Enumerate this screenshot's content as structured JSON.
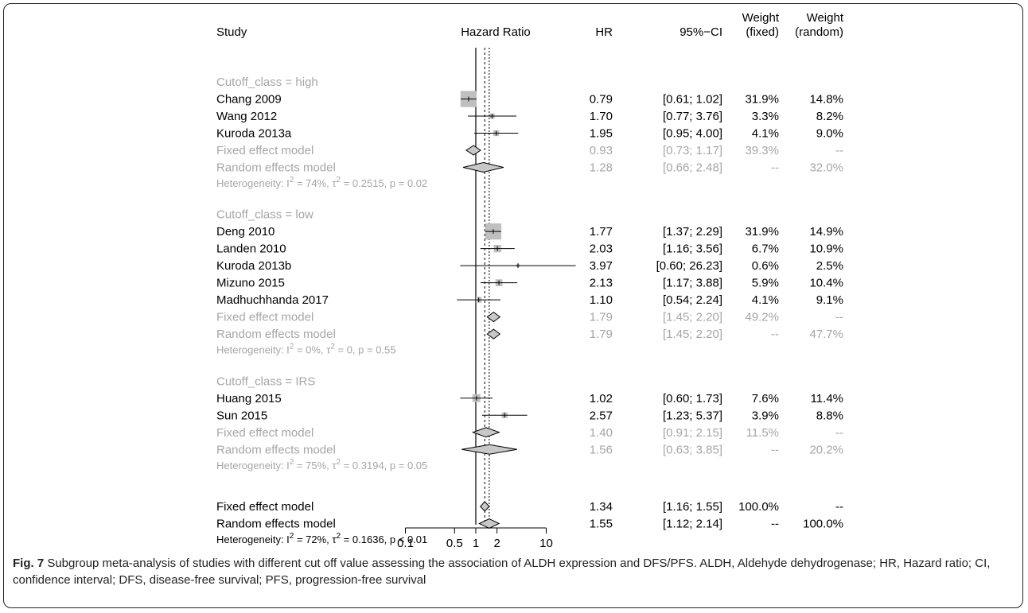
{
  "chart_data": {
    "type": "forest",
    "headers": {
      "study": "Study",
      "plot": "Hazard Ratio",
      "hr": "HR",
      "ci": "95%−CI",
      "weight_fixed_top": "Weight",
      "weight_fixed_bottom": "(fixed)",
      "weight_random_top": "Weight",
      "weight_random_bottom": "(random)"
    },
    "x_scale": "log",
    "x_ticks": [
      0.1,
      0.5,
      1,
      2,
      10
    ],
    "x_tick_labels": [
      "0.1",
      "0.5",
      "1",
      "2",
      "10"
    ],
    "reference_line": 1,
    "fixed_line": 1.34,
    "random_line": 1.55,
    "subgroups": [
      {
        "label": "Cutoff_class = high",
        "studies": [
          {
            "name": "Chang 2009",
            "hr": 0.79,
            "lower": 0.61,
            "upper": 1.02,
            "hr_text": "0.79",
            "ci_text": "[0.61; 1.02]",
            "wf": "31.9%",
            "wr": "14.8%",
            "weight": 31.9
          },
          {
            "name": "Wang 2012",
            "hr": 1.7,
            "lower": 0.77,
            "upper": 3.76,
            "hr_text": "1.70",
            "ci_text": "[0.77; 3.76]",
            "wf": "3.3%",
            "wr": "8.2%",
            "weight": 3.3
          },
          {
            "name": "Kuroda 2013a",
            "hr": 1.95,
            "lower": 0.95,
            "upper": 4.0,
            "hr_text": "1.95",
            "ci_text": "[0.95; 4.00]",
            "wf": "4.1%",
            "wr": "9.0%",
            "weight": 4.1
          }
        ],
        "fixed": {
          "name": "Fixed effect model",
          "hr": 0.93,
          "lower": 0.73,
          "upper": 1.17,
          "hr_text": "0.93",
          "ci_text": "[0.73; 1.17]",
          "wf": "39.3%",
          "wr": "--"
        },
        "random": {
          "name": "Random effects model",
          "hr": 1.28,
          "lower": 0.66,
          "upper": 2.48,
          "hr_text": "1.28",
          "ci_text": "[0.66; 2.48]",
          "wf": "--",
          "wr": "32.0%"
        },
        "heterogeneity": {
          "i2": "74%",
          "tau2": "0.2515",
          "p": "0.02"
        }
      },
      {
        "label": "Cutoff_class = low",
        "studies": [
          {
            "name": "Deng 2010",
            "hr": 1.77,
            "lower": 1.37,
            "upper": 2.29,
            "hr_text": "1.77",
            "ci_text": "[1.37; 2.29]",
            "wf": "31.9%",
            "wr": "14.9%",
            "weight": 31.9
          },
          {
            "name": "Landen 2010",
            "hr": 2.03,
            "lower": 1.16,
            "upper": 3.56,
            "hr_text": "2.03",
            "ci_text": "[1.16; 3.56]",
            "wf": "6.7%",
            "wr": "10.9%",
            "weight": 6.7
          },
          {
            "name": "Kuroda 2013b",
            "hr": 3.97,
            "lower": 0.6,
            "upper": 26.23,
            "hr_text": "3.97",
            "ci_text": "[0.60; 26.23]",
            "wf": "0.6%",
            "wr": "2.5%",
            "weight": 0.6
          },
          {
            "name": "Mizuno 2015",
            "hr": 2.13,
            "lower": 1.17,
            "upper": 3.88,
            "hr_text": "2.13",
            "ci_text": "[1.17; 3.88]",
            "wf": "5.9%",
            "wr": "10.4%",
            "weight": 5.9
          },
          {
            "name": "Madhuchhanda 2017",
            "hr": 1.1,
            "lower": 0.54,
            "upper": 2.24,
            "hr_text": "1.10",
            "ci_text": "[0.54; 2.24]",
            "wf": "4.1%",
            "wr": "9.1%",
            "weight": 4.1
          }
        ],
        "fixed": {
          "name": "Fixed effect model",
          "hr": 1.79,
          "lower": 1.45,
          "upper": 2.2,
          "hr_text": "1.79",
          "ci_text": "[1.45; 2.20]",
          "wf": "49.2%",
          "wr": "--"
        },
        "random": {
          "name": "Random effects model",
          "hr": 1.79,
          "lower": 1.45,
          "upper": 2.2,
          "hr_text": "1.79",
          "ci_text": "[1.45; 2.20]",
          "wf": "--",
          "wr": "47.7%"
        },
        "heterogeneity": {
          "i2": "0%",
          "tau2": "0",
          "p": "0.55"
        }
      },
      {
        "label": "Cutoff_class = IRS",
        "studies": [
          {
            "name": "Huang 2015",
            "hr": 1.02,
            "lower": 0.6,
            "upper": 1.73,
            "hr_text": "1.02",
            "ci_text": "[0.60; 1.73]",
            "wf": "7.6%",
            "wr": "11.4%",
            "weight": 7.6
          },
          {
            "name": "Sun 2015",
            "hr": 2.57,
            "lower": 1.23,
            "upper": 5.37,
            "hr_text": "2.57",
            "ci_text": "[1.23; 5.37]",
            "wf": "3.9%",
            "wr": "8.8%",
            "weight": 3.9
          }
        ],
        "fixed": {
          "name": "Fixed effect model",
          "hr": 1.4,
          "lower": 0.91,
          "upper": 2.15,
          "hr_text": "1.40",
          "ci_text": "[0.91; 2.15]",
          "wf": "11.5%",
          "wr": "--"
        },
        "random": {
          "name": "Random effects model",
          "hr": 1.56,
          "lower": 0.63,
          "upper": 3.85,
          "hr_text": "1.56",
          "ci_text": "[0.63; 3.85]",
          "wf": "--",
          "wr": "20.2%"
        },
        "heterogeneity": {
          "i2": "75%",
          "tau2": "0.3194",
          "p": "0.05"
        }
      }
    ],
    "overall": {
      "fixed": {
        "name": "Fixed effect model",
        "hr": 1.34,
        "lower": 1.16,
        "upper": 1.55,
        "hr_text": "1.34",
        "ci_text": "[1.16; 1.55]",
        "wf": "100.0%",
        "wr": "--"
      },
      "random": {
        "name": "Random effects model",
        "hr": 1.55,
        "lower": 1.12,
        "upper": 2.14,
        "hr_text": "1.55",
        "ci_text": "[1.12; 2.14]",
        "wf": "--",
        "wr": "100.0%"
      },
      "heterogeneity": {
        "i2": "72%",
        "tau2": "0.1636",
        "p_text": "p < 0.01"
      }
    },
    "colors": {
      "main": "#000000",
      "grey": "#a6a6a6",
      "box": "#bfbfbf",
      "diamond": "#c8c8c8"
    }
  },
  "caption": {
    "label": "Fig. 7",
    "text": " Subgroup meta-analysis of studies with different cut off value assessing the association of ALDH expression and DFS/PFS. ALDH, Aldehyde dehydrogenase; HR, Hazard ratio; CI, confidence interval; DFS, disease-free survival; PFS, progression-free survival"
  }
}
